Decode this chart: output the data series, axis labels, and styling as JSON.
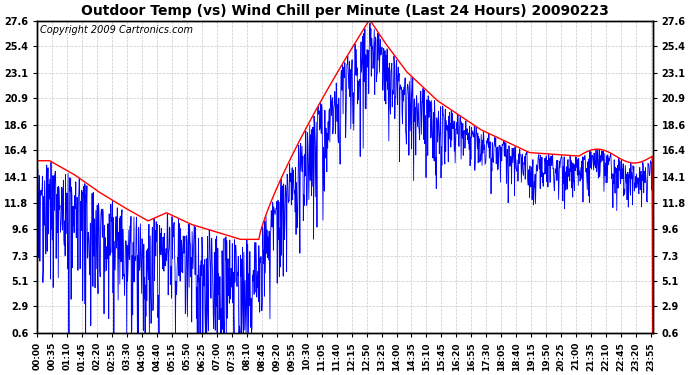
{
  "title": "Outdoor Temp (vs) Wind Chill per Minute (Last 24 Hours) 20090223",
  "copyright": "Copyright 2009 Cartronics.com",
  "yticks": [
    0.6,
    2.9,
    5.1,
    7.3,
    9.6,
    11.8,
    14.1,
    16.4,
    18.6,
    20.9,
    23.1,
    25.4,
    27.6
  ],
  "ylim": [
    0.6,
    27.6
  ],
  "bg_color": "#ffffff",
  "grid_color": "#c8c8c8",
  "line1_color": "#0000ff",
  "line2_color": "#ff0000",
  "title_fontsize": 10,
  "copyright_fontsize": 7,
  "tick_fontsize": 7
}
